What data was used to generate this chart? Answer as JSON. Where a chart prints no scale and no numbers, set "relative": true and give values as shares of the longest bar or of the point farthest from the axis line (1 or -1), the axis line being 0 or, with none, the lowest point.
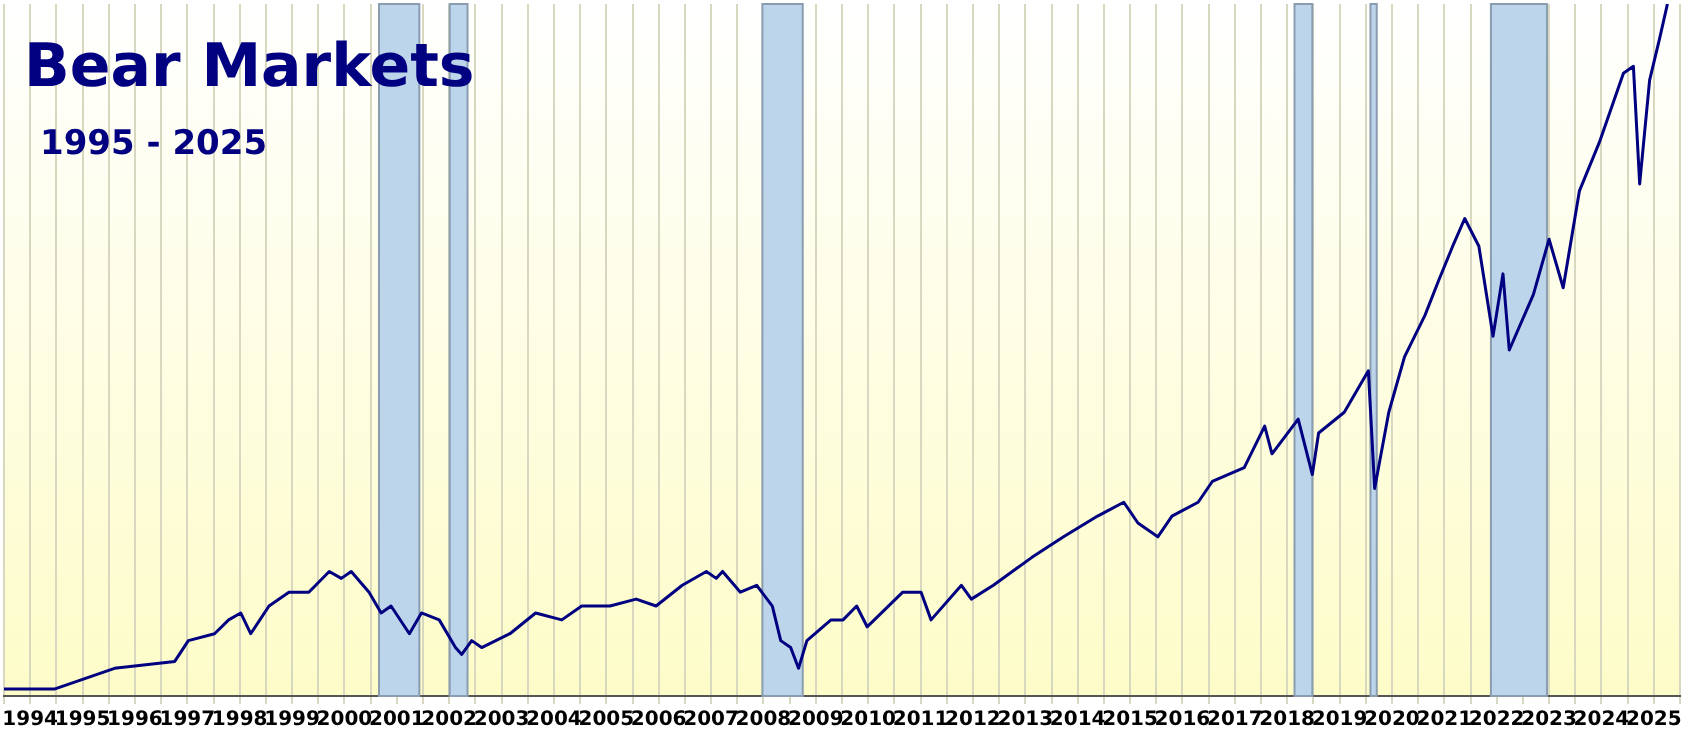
{
  "chart_data": {
    "type": "line",
    "title": "Bear Markets",
    "subtitle": "1995 - 2025",
    "relative": true,
    "grid": true,
    "marker": "none",
    "line_style": "solid",
    "xlim": [
      1994,
      2026
    ],
    "xticks": [
      {
        "value": 1994,
        "label": null
      },
      {
        "value": 1994.5,
        "label": "1994"
      },
      {
        "value": 1995,
        "label": null
      },
      {
        "value": 1995.5,
        "label": "1995"
      },
      {
        "value": 1996,
        "label": null
      },
      {
        "value": 1996.5,
        "label": "1996"
      },
      {
        "value": 1997,
        "label": null
      },
      {
        "value": 1997.5,
        "label": "1997"
      },
      {
        "value": 1998,
        "label": null
      },
      {
        "value": 1998.5,
        "label": "1998"
      },
      {
        "value": 1999,
        "label": null
      },
      {
        "value": 1999.5,
        "label": "1999"
      },
      {
        "value": 2000,
        "label": null
      },
      {
        "value": 2000.5,
        "label": "2000"
      },
      {
        "value": 2001,
        "label": null
      },
      {
        "value": 2001.5,
        "label": "2001"
      },
      {
        "value": 2002,
        "label": null
      },
      {
        "value": 2002.5,
        "label": "2002"
      },
      {
        "value": 2003,
        "label": null
      },
      {
        "value": 2003.5,
        "label": "2003"
      },
      {
        "value": 2004,
        "label": null
      },
      {
        "value": 2004.5,
        "label": "2004"
      },
      {
        "value": 2005,
        "label": null
      },
      {
        "value": 2005.5,
        "label": "2005"
      },
      {
        "value": 2006,
        "label": null
      },
      {
        "value": 2006.5,
        "label": "2006"
      },
      {
        "value": 2007,
        "label": null
      },
      {
        "value": 2007.5,
        "label": "2007"
      },
      {
        "value": 2008,
        "label": null
      },
      {
        "value": 2008.5,
        "label": "2008"
      },
      {
        "value": 2009,
        "label": null
      },
      {
        "value": 2009.5,
        "label": "2009"
      },
      {
        "value": 2010,
        "label": null
      },
      {
        "value": 2010.5,
        "label": "2010"
      },
      {
        "value": 2011,
        "label": null
      },
      {
        "value": 2011.5,
        "label": "2011"
      },
      {
        "value": 2012,
        "label": null
      },
      {
        "value": 2012.5,
        "label": "2012"
      },
      {
        "value": 2013,
        "label": null
      },
      {
        "value": 2013.5,
        "label": "2013"
      },
      {
        "value": 2014,
        "label": null
      },
      {
        "value": 2014.5,
        "label": "2014"
      },
      {
        "value": 2015,
        "label": null
      },
      {
        "value": 2015.5,
        "label": "2015"
      },
      {
        "value": 2016,
        "label": null
      },
      {
        "value": 2016.5,
        "label": "2016"
      },
      {
        "value": 2017,
        "label": null
      },
      {
        "value": 2017.5,
        "label": "2017"
      },
      {
        "value": 2018,
        "label": null
      },
      {
        "value": 2018.5,
        "label": "2018"
      },
      {
        "value": 2019,
        "label": null
      },
      {
        "value": 2019.5,
        "label": "2019"
      },
      {
        "value": 2020,
        "label": null
      },
      {
        "value": 2020.5,
        "label": "2020"
      },
      {
        "value": 2021,
        "label": null
      },
      {
        "value": 2021.5,
        "label": "2021"
      },
      {
        "value": 2022,
        "label": null
      },
      {
        "value": 2022.5,
        "label": "2022"
      },
      {
        "value": 2023,
        "label": null
      },
      {
        "value": 2023.5,
        "label": "2023"
      },
      {
        "value": 2024,
        "label": null
      },
      {
        "value": 2024.5,
        "label": "2024"
      },
      {
        "value": 2025,
        "label": null
      },
      {
        "value": 2025.5,
        "label": "2025"
      },
      {
        "value": 2026,
        "label": null
      }
    ],
    "bands": [
      {
        "axis": "x",
        "from": 2001.16,
        "to": 2001.93,
        "color": "#bcd5ea"
      },
      {
        "axis": "x",
        "from": 2002.51,
        "to": 2002.85,
        "color": "#bcd5ea"
      },
      {
        "axis": "x",
        "from": 2008.48,
        "to": 2009.25,
        "color": "#bcd5ea"
      },
      {
        "axis": "x",
        "from": 2018.64,
        "to": 2018.98,
        "color": "#bcd5ea"
      },
      {
        "axis": "x",
        "from": 2020.09,
        "to": 2020.21,
        "color": "#bcd5ea"
      },
      {
        "axis": "x",
        "from": 2022.39,
        "to": 2023.46,
        "color": "#bcd5ea"
      }
    ],
    "series": [
      {
        "color": "#000080",
        "x": [
          1994.0,
          1994.57,
          1994.96,
          1996.11,
          1997.26,
          1997.52,
          1998.02,
          1998.29,
          1998.52,
          1998.71,
          1999.06,
          1999.44,
          1999.82,
          2000.21,
          2000.44,
          2000.63,
          2000.97,
          2001.2,
          2001.39,
          2001.74,
          2001.97,
          2002.31,
          2002.62,
          2002.74,
          2002.93,
          2003.12,
          2003.66,
          2004.15,
          2004.65,
          2005.03,
          2005.57,
          2006.07,
          2006.45,
          2006.95,
          2007.41,
          2007.6,
          2007.72,
          2008.06,
          2008.37,
          2008.67,
          2008.83,
          2009.02,
          2009.17,
          2009.33,
          2009.79,
          2010.02,
          2010.28,
          2010.48,
          2011.16,
          2011.51,
          2011.7,
          2012.28,
          2012.47,
          2012.89,
          2013.62,
          2014.23,
          2014.88,
          2015.38,
          2015.65,
          2016.03,
          2016.3,
          2016.8,
          2017.07,
          2017.68,
          2018.07,
          2018.21,
          2018.71,
          2018.98,
          2019.1,
          2019.59,
          2020.05,
          2020.17,
          2020.44,
          2020.74,
          2021.13,
          2021.39,
          2021.66,
          2021.89,
          2022.16,
          2022.43,
          2022.62,
          2022.74,
          2023.2,
          2023.5,
          2023.77,
          2024.08,
          2024.46,
          2024.92,
          2025.11,
          2025.23,
          2025.42,
          2025.61,
          2025.76
        ],
        "values": [
          0.01,
          0.01,
          0.01,
          0.04,
          0.05,
          0.08,
          0.09,
          0.11,
          0.12,
          0.09,
          0.13,
          0.15,
          0.15,
          0.18,
          0.17,
          0.18,
          0.15,
          0.12,
          0.13,
          0.09,
          0.12,
          0.11,
          0.07,
          0.06,
          0.08,
          0.07,
          0.09,
          0.12,
          0.11,
          0.13,
          0.13,
          0.14,
          0.13,
          0.16,
          0.18,
          0.17,
          0.18,
          0.15,
          0.16,
          0.13,
          0.08,
          0.07,
          0.04,
          0.08,
          0.11,
          0.11,
          0.13,
          0.1,
          0.15,
          0.15,
          0.11,
          0.16,
          0.14,
          0.16,
          0.2,
          0.23,
          0.26,
          0.28,
          0.25,
          0.23,
          0.26,
          0.28,
          0.31,
          0.33,
          0.39,
          0.35,
          0.4,
          0.32,
          0.38,
          0.41,
          0.47,
          0.3,
          0.41,
          0.49,
          0.55,
          0.6,
          0.65,
          0.69,
          0.65,
          0.52,
          0.61,
          0.5,
          0.58,
          0.66,
          0.59,
          0.73,
          0.8,
          0.9,
          0.91,
          0.74,
          0.89,
          0.95,
          1.0
        ]
      }
    ]
  }
}
